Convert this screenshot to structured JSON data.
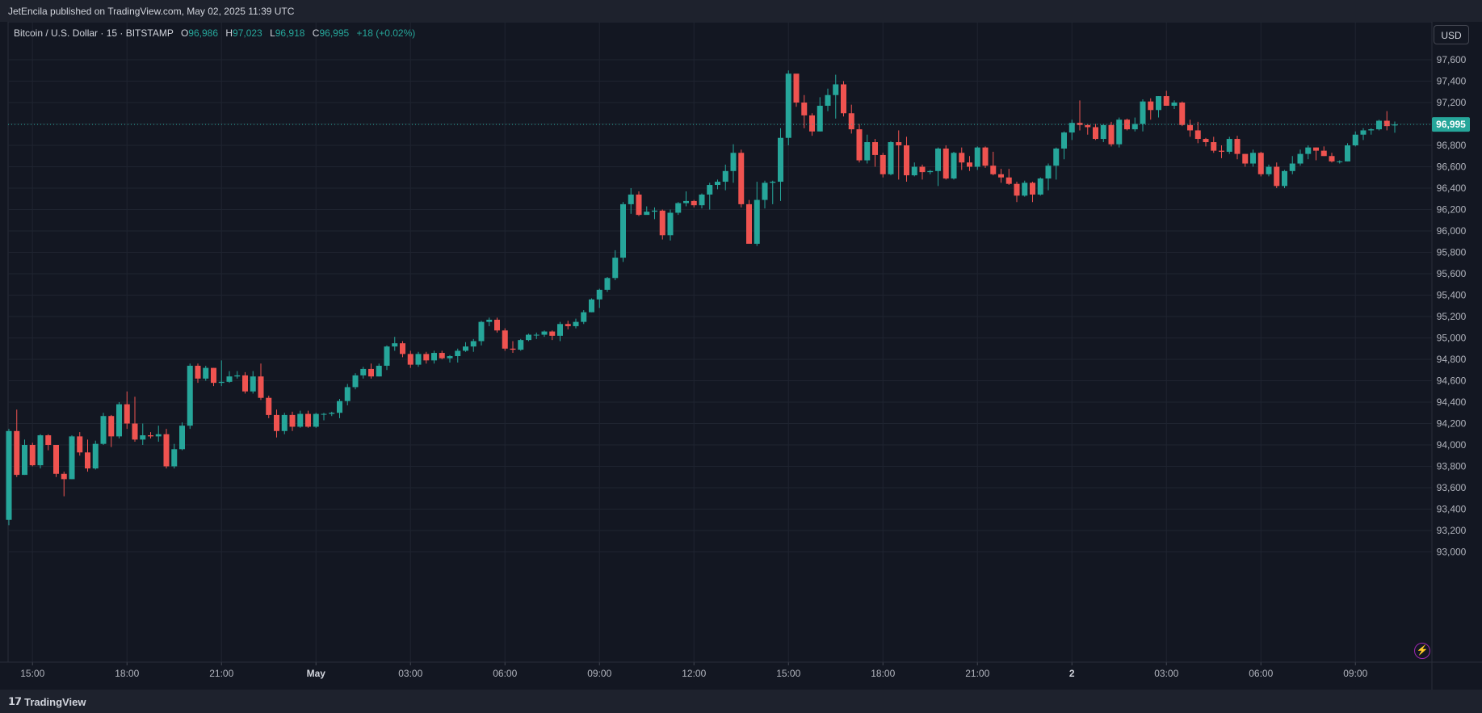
{
  "header": {
    "published": "JetEncila published on TradingView.com, May 02, 2025 11:39 UTC"
  },
  "legend": {
    "symbol": "Bitcoin / U.S. Dollar · 15 · BITSTAMP",
    "open_key": "O",
    "open": "96,986",
    "high_key": "H",
    "high": "97,023",
    "low_key": "L",
    "low": "96,918",
    "close_key": "C",
    "close": "96,995",
    "change": "+18 (+0.02%)"
  },
  "currency_button": "USD",
  "last_price_label": "96,995",
  "footer": {
    "brand": "TradingView",
    "brand_icon": "tradingview-logo-icon"
  },
  "colors": {
    "up": "#26a69a",
    "down": "#ef5350",
    "background": "#131722",
    "grid": "#1f2430",
    "text": "#b2b5be"
  },
  "chart_data": {
    "type": "candlestick",
    "interval": "15",
    "ylim": [
      92800,
      97800
    ],
    "y_ticks": [
      93000,
      93200,
      93400,
      93600,
      93800,
      94000,
      94200,
      94400,
      94600,
      94800,
      95000,
      95200,
      95400,
      95600,
      95800,
      96000,
      96200,
      96400,
      96600,
      96800,
      97000,
      97200,
      97400,
      97600
    ],
    "y_tick_labels": [
      "93,000",
      "93,200",
      "93,400",
      "93,600",
      "93,800",
      "94,000",
      "94,200",
      "94,400",
      "94,600",
      "94,800",
      "95,000",
      "95,200",
      "95,400",
      "95,600",
      "95,800",
      "96,000",
      "96,200",
      "96,400",
      "96,600",
      "96,800",
      "97,000",
      "97,200",
      "97,400",
      "97,600"
    ],
    "x_ticks": [
      {
        "label": "15:00",
        "index": 3,
        "bold": false
      },
      {
        "label": "18:00",
        "index": 15,
        "bold": false
      },
      {
        "label": "21:00",
        "index": 27,
        "bold": false
      },
      {
        "label": "May",
        "index": 39,
        "bold": true
      },
      {
        "label": "03:00",
        "index": 51,
        "bold": false
      },
      {
        "label": "06:00",
        "index": 63,
        "bold": false
      },
      {
        "label": "09:00",
        "index": 75,
        "bold": false
      },
      {
        "label": "12:00",
        "index": 87,
        "bold": false
      },
      {
        "label": "15:00",
        "index": 99,
        "bold": false
      },
      {
        "label": "18:00",
        "index": 111,
        "bold": false
      },
      {
        "label": "21:00",
        "index": 123,
        "bold": false
      },
      {
        "label": "2",
        "index": 135,
        "bold": true
      },
      {
        "label": "03:00",
        "index": 147,
        "bold": false
      },
      {
        "label": "06:00",
        "index": 159,
        "bold": false
      },
      {
        "label": "09:00",
        "index": 171,
        "bold": false
      }
    ],
    "last_price": 96995,
    "candles": [
      [
        93300,
        94150,
        93250,
        94130
      ],
      [
        94130,
        94330,
        93700,
        93720
      ],
      [
        93720,
        94050,
        93720,
        94000
      ],
      [
        94000,
        94020,
        93800,
        93810
      ],
      [
        93810,
        94100,
        93780,
        94090
      ],
      [
        94090,
        94100,
        93950,
        94000
      ],
      [
        94000,
        94000,
        93700,
        93730
      ],
      [
        93730,
        93750,
        93520,
        93680
      ],
      [
        93680,
        94090,
        93680,
        94080
      ],
      [
        94080,
        94120,
        93900,
        93930
      ],
      [
        93930,
        94050,
        93750,
        93780
      ],
      [
        93780,
        94040,
        93770,
        94010
      ],
      [
        94010,
        94300,
        94000,
        94270
      ],
      [
        94270,
        94280,
        93980,
        94080
      ],
      [
        94080,
        94400,
        94060,
        94380
      ],
      [
        94380,
        94500,
        94150,
        94200
      ],
      [
        94200,
        94450,
        94030,
        94050
      ],
      [
        94050,
        94200,
        94000,
        94090
      ],
      [
        94090,
        94120,
        94060,
        94080
      ],
      [
        94080,
        94180,
        94030,
        94100
      ],
      [
        94100,
        94150,
        93780,
        93800
      ],
      [
        93800,
        94010,
        93780,
        93960
      ],
      [
        93960,
        94210,
        93950,
        94180
      ],
      [
        94180,
        94760,
        94150,
        94740
      ],
      [
        94740,
        94760,
        94580,
        94620
      ],
      [
        94620,
        94740,
        94600,
        94720
      ],
      [
        94720,
        94720,
        94550,
        94580
      ],
      [
        94580,
        94790,
        94550,
        94590
      ],
      [
        94590,
        94690,
        94580,
        94640
      ],
      [
        94640,
        94690,
        94620,
        94650
      ],
      [
        94650,
        94680,
        94480,
        94500
      ],
      [
        94500,
        94690,
        94480,
        94640
      ],
      [
        94640,
        94760,
        94420,
        94440
      ],
      [
        94440,
        94460,
        94250,
        94280
      ],
      [
        94280,
        94330,
        94070,
        94130
      ],
      [
        94130,
        94300,
        94100,
        94280
      ],
      [
        94280,
        94310,
        94130,
        94170
      ],
      [
        94170,
        94320,
        94160,
        94290
      ],
      [
        94290,
        94320,
        94160,
        94170
      ],
      [
        94170,
        94300,
        94160,
        94290
      ],
      [
        94290,
        94300,
        94230,
        94290
      ],
      [
        94290,
        94310,
        94270,
        94300
      ],
      [
        94300,
        94430,
        94250,
        94410
      ],
      [
        94410,
        94570,
        94370,
        94540
      ],
      [
        94540,
        94670,
        94520,
        94650
      ],
      [
        94650,
        94730,
        94620,
        94710
      ],
      [
        94710,
        94760,
        94620,
        94640
      ],
      [
        94640,
        94760,
        94640,
        94740
      ],
      [
        94740,
        94930,
        94700,
        94920
      ],
      [
        94920,
        95010,
        94880,
        94950
      ],
      [
        94950,
        94970,
        94820,
        94850
      ],
      [
        94850,
        94880,
        94720,
        94750
      ],
      [
        94750,
        94870,
        94730,
        94850
      ],
      [
        94850,
        94870,
        94760,
        94790
      ],
      [
        94790,
        94880,
        94760,
        94860
      ],
      [
        94860,
        94880,
        94800,
        94810
      ],
      [
        94810,
        94840,
        94770,
        94830
      ],
      [
        94830,
        94900,
        94770,
        94880
      ],
      [
        94880,
        94960,
        94870,
        94920
      ],
      [
        94920,
        94990,
        94870,
        94970
      ],
      [
        94970,
        95160,
        94930,
        95150
      ],
      [
        95150,
        95190,
        95110,
        95170
      ],
      [
        95170,
        95190,
        95050,
        95070
      ],
      [
        95070,
        95090,
        94880,
        94900
      ],
      [
        94900,
        94970,
        94860,
        94890
      ],
      [
        94890,
        94990,
        94880,
        94980
      ],
      [
        94980,
        95040,
        94970,
        95030
      ],
      [
        95030,
        95050,
        94990,
        95030
      ],
      [
        95030,
        95070,
        95010,
        95060
      ],
      [
        95060,
        95070,
        94980,
        95020
      ],
      [
        95020,
        95150,
        94970,
        95130
      ],
      [
        95130,
        95160,
        95080,
        95110
      ],
      [
        95110,
        95180,
        95090,
        95150
      ],
      [
        95150,
        95260,
        95130,
        95240
      ],
      [
        95240,
        95370,
        95240,
        95360
      ],
      [
        95360,
        95460,
        95280,
        95450
      ],
      [
        95450,
        95570,
        95430,
        95560
      ],
      [
        95560,
        95820,
        95540,
        95750
      ],
      [
        95750,
        96270,
        95710,
        96250
      ],
      [
        96250,
        96400,
        96160,
        96340
      ],
      [
        96340,
        96370,
        96140,
        96150
      ],
      [
        96150,
        96230,
        96170,
        96180
      ],
      [
        96180,
        96220,
        96110,
        96190
      ],
      [
        96190,
        96200,
        95920,
        95960
      ],
      [
        95960,
        96200,
        95910,
        96170
      ],
      [
        96170,
        96270,
        96150,
        96260
      ],
      [
        96260,
        96370,
        96230,
        96280
      ],
      [
        96280,
        96290,
        96220,
        96240
      ],
      [
        96240,
        96350,
        96210,
        96340
      ],
      [
        96340,
        96450,
        96200,
        96430
      ],
      [
        96430,
        96480,
        96390,
        96460
      ],
      [
        96460,
        96620,
        96380,
        96560
      ],
      [
        96560,
        96810,
        96450,
        96730
      ],
      [
        96730,
        96760,
        96220,
        96250
      ],
      [
        96250,
        96290,
        95890,
        95880
      ],
      [
        95880,
        96460,
        95860,
        96290
      ],
      [
        96290,
        96470,
        96210,
        96450
      ],
      [
        96450,
        96470,
        96250,
        96460
      ],
      [
        96460,
        96960,
        96280,
        96870
      ],
      [
        96870,
        97500,
        96800,
        97470
      ],
      [
        97470,
        97460,
        97160,
        97200
      ],
      [
        97200,
        97270,
        96960,
        97080
      ],
      [
        97080,
        97100,
        96890,
        96930
      ],
      [
        96930,
        97250,
        96930,
        97170
      ],
      [
        97170,
        97330,
        97120,
        97270
      ],
      [
        97270,
        97460,
        97050,
        97370
      ],
      [
        97370,
        97400,
        97070,
        97100
      ],
      [
        97100,
        97180,
        96910,
        96950
      ],
      [
        96950,
        97000,
        96640,
        96660
      ],
      [
        96660,
        96900,
        96630,
        96830
      ],
      [
        96830,
        96860,
        96600,
        96710
      ],
      [
        96710,
        96730,
        96500,
        96530
      ],
      [
        96530,
        96840,
        96520,
        96830
      ],
      [
        96830,
        96940,
        96480,
        96800
      ],
      [
        96800,
        96880,
        96460,
        96520
      ],
      [
        96520,
        96640,
        96510,
        96600
      ],
      [
        96600,
        96620,
        96480,
        96550
      ],
      [
        96550,
        96570,
        96530,
        96560
      ],
      [
        96560,
        96780,
        96420,
        96770
      ],
      [
        96770,
        96800,
        96480,
        96490
      ],
      [
        96490,
        96740,
        96480,
        96730
      ],
      [
        96730,
        96780,
        96570,
        96640
      ],
      [
        96640,
        96700,
        96560,
        96600
      ],
      [
        96600,
        96790,
        96570,
        96780
      ],
      [
        96780,
        96790,
        96590,
        96610
      ],
      [
        96610,
        96740,
        96520,
        96530
      ],
      [
        96530,
        96580,
        96450,
        96500
      ],
      [
        96500,
        96580,
        96430,
        96440
      ],
      [
        96440,
        96460,
        96270,
        96330
      ],
      [
        96330,
        96470,
        96320,
        96450
      ],
      [
        96450,
        96460,
        96270,
        96340
      ],
      [
        96340,
        96500,
        96330,
        96490
      ],
      [
        96490,
        96630,
        96380,
        96610
      ],
      [
        96610,
        96780,
        96480,
        96770
      ],
      [
        96770,
        96930,
        96670,
        96920
      ],
      [
        96920,
        97040,
        96850,
        97010
      ],
      [
        97010,
        97220,
        96940,
        96990
      ],
      [
        96990,
        97000,
        96900,
        96970
      ],
      [
        96970,
        97000,
        96850,
        96860
      ],
      [
        96860,
        97000,
        96830,
        96990
      ],
      [
        96990,
        97020,
        96790,
        96810
      ],
      [
        96810,
        97060,
        96780,
        97040
      ],
      [
        97040,
        97050,
        96940,
        96950
      ],
      [
        96950,
        97060,
        96930,
        97000
      ],
      [
        97000,
        97230,
        96930,
        97210
      ],
      [
        97210,
        97240,
        97040,
        97130
      ],
      [
        97130,
        97260,
        97060,
        97260
      ],
      [
        97260,
        97310,
        97170,
        97170
      ],
      [
        97170,
        97220,
        97140,
        97200
      ],
      [
        97200,
        97210,
        96980,
        96990
      ],
      [
        96990,
        97040,
        96880,
        96940
      ],
      [
        96940,
        97020,
        96820,
        96860
      ],
      [
        96860,
        96870,
        96790,
        96830
      ],
      [
        96830,
        96880,
        96730,
        96750
      ],
      [
        96750,
        96800,
        96680,
        96740
      ],
      [
        96740,
        96880,
        96720,
        96860
      ],
      [
        96860,
        96890,
        96670,
        96720
      ],
      [
        96720,
        96720,
        96600,
        96630
      ],
      [
        96630,
        96760,
        96600,
        96730
      ],
      [
        96730,
        96740,
        96510,
        96530
      ],
      [
        96530,
        96620,
        96510,
        96600
      ],
      [
        96600,
        96640,
        96400,
        96420
      ],
      [
        96420,
        96570,
        96400,
        96560
      ],
      [
        96560,
        96700,
        96530,
        96630
      ],
      [
        96630,
        96760,
        96610,
        96720
      ],
      [
        96720,
        96800,
        96670,
        96780
      ],
      [
        96780,
        96780,
        96660,
        96750
      ],
      [
        96750,
        96790,
        96700,
        96700
      ],
      [
        96700,
        96730,
        96640,
        96650
      ],
      [
        96650,
        96660,
        96630,
        96650
      ],
      [
        96650,
        96820,
        96650,
        96800
      ],
      [
        96800,
        96930,
        96790,
        96900
      ],
      [
        96900,
        96960,
        96850,
        96940
      ],
      [
        96940,
        96960,
        96900,
        96950
      ],
      [
        96950,
        97040,
        96940,
        97030
      ],
      [
        97030,
        97120,
        96940,
        96980
      ],
      [
        96986,
        97023,
        96918,
        96995
      ]
    ]
  }
}
